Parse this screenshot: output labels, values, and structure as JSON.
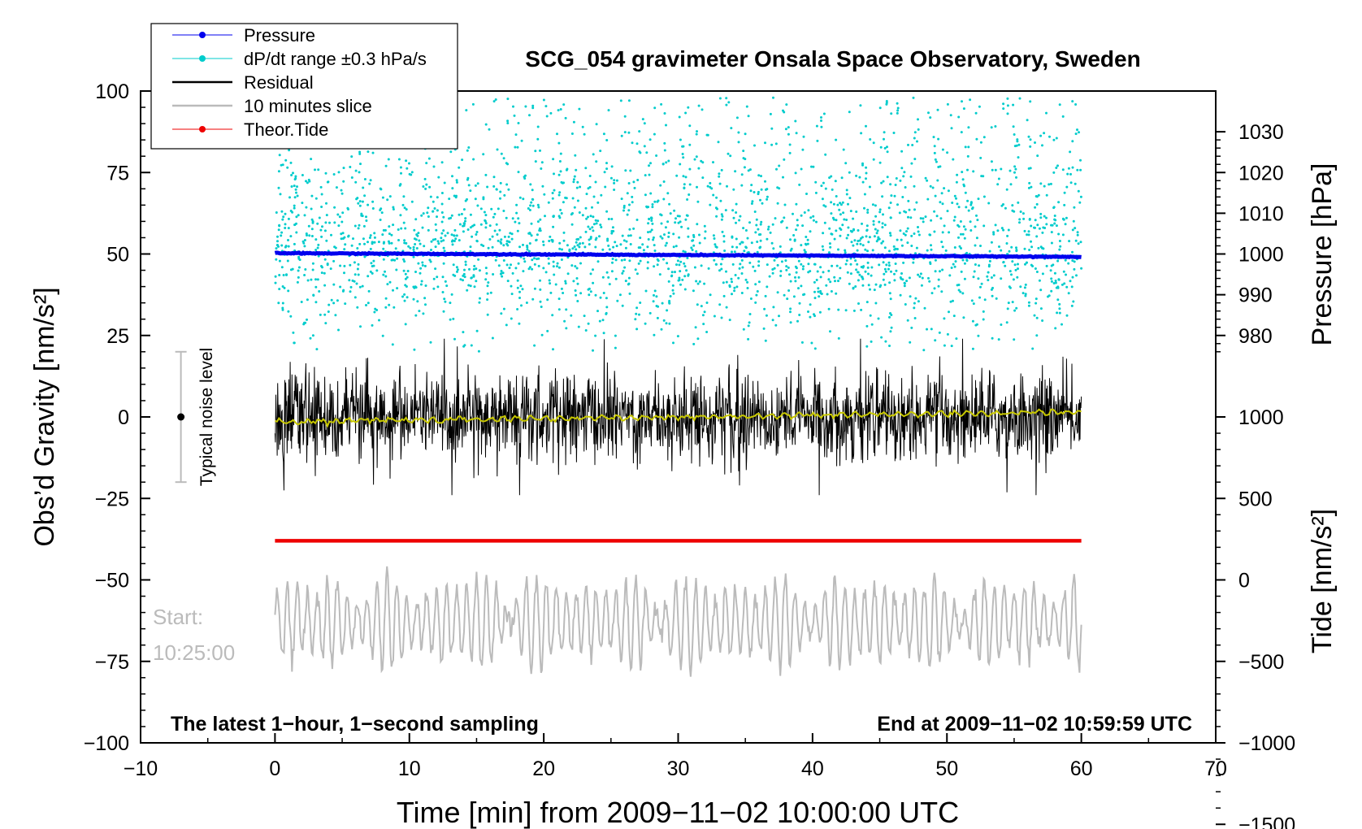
{
  "chart_data": {
    "type": "line",
    "title": "SCG_054 gravimeter Onsala Space Observatory, Sweden",
    "xlabel": "Time [min] from 2009−11−02 10:00:00 UTC",
    "ylabel_left": "Obs’d Gravity [nm/s²]",
    "ylabel_right_pressure": "Pressure [hPa]",
    "ylabel_right_tide": "Tide [nm/s²]",
    "xlim": [
      -10,
      70
    ],
    "ylim": [
      -100,
      100
    ],
    "x_ticks": [
      "−10",
      "0",
      "10",
      "20",
      "30",
      "40",
      "50",
      "60",
      "70"
    ],
    "y_ticks": [
      "−100",
      "−75",
      "−50",
      "−25",
      "0",
      "25",
      "50",
      "75",
      "100"
    ],
    "pressure_ticks": [
      "980",
      "990",
      "1000",
      "1010",
      "1020",
      "1030"
    ],
    "pressure_range": [
      980,
      1030
    ],
    "tide_ticks": [
      "−1500",
      "−1000",
      "−500",
      "0",
      "500",
      "1000"
    ],
    "tide_range": [
      -1500,
      1000
    ],
    "legend": [
      {
        "label": "Pressure",
        "color": "#0000ee",
        "marker": true
      },
      {
        "label": "dP/dt range ±0.3 hPa/s",
        "color": "#00cccc",
        "marker": true
      },
      {
        "label": "Residual",
        "color": "#000000",
        "marker": false
      },
      {
        "label": "10 minutes slice",
        "color": "#bbbbbb",
        "marker": false
      },
      {
        "label": "Theor.Tide",
        "color": "#ee0000",
        "marker": true
      }
    ],
    "legend_position": "top-left",
    "series": [
      {
        "name": "Pressure",
        "x_range": [
          0,
          60
        ],
        "start_hPa": 1000.2,
        "end_hPa": 999.3,
        "color": "#0000ee"
      },
      {
        "name": "dP/dt range ±0.3 hPa/s",
        "x_range": [
          0,
          60
        ],
        "y_range": [
          20,
          100
        ],
        "color": "#00cccc"
      },
      {
        "name": "Residual",
        "x_range": [
          0,
          60
        ],
        "y_range": [
          -22,
          22
        ],
        "color": "#000000"
      },
      {
        "name": "Residual smoothed",
        "x_range": [
          0,
          60
        ],
        "start": -1.5,
        "end": 1.5,
        "color": "#c8c800"
      },
      {
        "name": "Theor.Tide",
        "x_range": [
          0,
          60
        ],
        "value": -38,
        "color": "#ee0000"
      },
      {
        "name": "10 minutes slice",
        "x_range": [
          0,
          60
        ],
        "center": -63,
        "amplitude": 12,
        "color": "#bbbbbb"
      }
    ],
    "noise_level": {
      "label": "Typical noise level",
      "x": -7,
      "center": 0,
      "low": -20,
      "high": 20
    },
    "annotations": {
      "start_label": "Start:",
      "start_time": "10:25:00",
      "bottom_left": "The latest 1−hour, 1−second sampling",
      "bottom_right": "End at 2009−11−02 10:59:59 UTC"
    },
    "colors": {
      "pressure": "#0000ee",
      "dpdt": "#00cccc",
      "residual": "#000000",
      "smoothed": "#c8c800",
      "tide": "#ee0000",
      "slice": "#bbbbbb"
    }
  }
}
